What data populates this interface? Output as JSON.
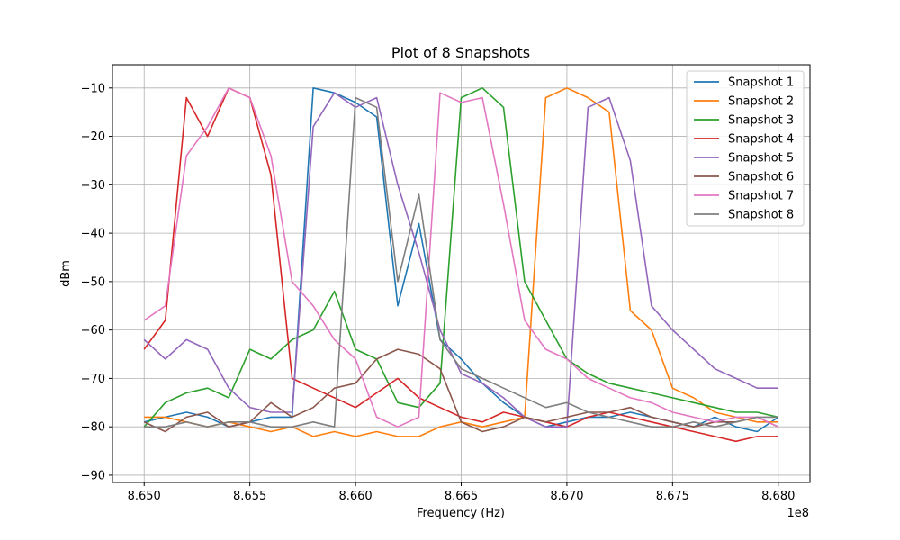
{
  "chart_data": {
    "type": "line",
    "title": "Plot of 8 Snapshots",
    "xlabel": "Frequency (Hz)",
    "ylabel": "dBm",
    "x_offset_label": "1e8",
    "xlim": [
      8.6485,
      8.6815
    ],
    "ylim": [
      -91.5,
      -5.2
    ],
    "x_ticks": [
      8.65,
      8.655,
      8.66,
      8.665,
      8.67,
      8.675,
      8.68
    ],
    "x_tick_labels": [
      "8.650",
      "8.655",
      "8.660",
      "8.665",
      "8.670",
      "8.675",
      "8.680"
    ],
    "y_ticks": [
      -90,
      -80,
      -70,
      -60,
      -50,
      -40,
      -30,
      -20,
      -10
    ],
    "y_tick_labels": [
      "−90",
      "−80",
      "−70",
      "−60",
      "−50",
      "−40",
      "−30",
      "−20",
      "−10"
    ],
    "grid": true,
    "legend_position": "top-right",
    "x": [
      8.65,
      8.651,
      8.652,
      8.653,
      8.654,
      8.655,
      8.656,
      8.657,
      8.658,
      8.659,
      8.66,
      8.661,
      8.662,
      8.663,
      8.664,
      8.665,
      8.666,
      8.667,
      8.668,
      8.669,
      8.67,
      8.671,
      8.672,
      8.673,
      8.674,
      8.675,
      8.676,
      8.677,
      8.678,
      8.679,
      8.68
    ],
    "series": [
      {
        "name": "Snapshot 1",
        "color": "#1f77b4",
        "values": [
          -79,
          -78,
          -77,
          -78,
          -80,
          -79,
          -78,
          -78,
          -10,
          -11,
          -13,
          -16,
          -55,
          -38,
          -62,
          -66,
          -71,
          -75,
          -78,
          -80,
          -79,
          -78,
          -78,
          -77,
          -78,
          -79,
          -80,
          -78,
          -80,
          -81,
          -78
        ]
      },
      {
        "name": "Snapshot 2",
        "color": "#ff7f0e",
        "values": [
          -78,
          -78,
          -79,
          -80,
          -79,
          -80,
          -81,
          -80,
          -82,
          -81,
          -82,
          -81,
          -82,
          -82,
          -80,
          -79,
          -80,
          -79,
          -78,
          -12,
          -10,
          -12,
          -15,
          -56,
          -60,
          -72,
          -74,
          -77,
          -78,
          -79,
          -79
        ]
      },
      {
        "name": "Snapshot 3",
        "color": "#2ca02c",
        "values": [
          -80,
          -75,
          -73,
          -72,
          -74,
          -64,
          -66,
          -62,
          -60,
          -52,
          -64,
          -66,
          -75,
          -76,
          -71,
          -12,
          -10,
          -14,
          -50,
          -58,
          -66,
          -69,
          -71,
          -72,
          -73,
          -74,
          -75,
          -76,
          -77,
          -77,
          -78
        ]
      },
      {
        "name": "Snapshot 4",
        "color": "#d62728",
        "values": [
          -64,
          -58,
          -12,
          -20,
          -10,
          -12,
          -28,
          -70,
          -72,
          -74,
          -76,
          -73,
          -70,
          -74,
          -76,
          -78,
          -79,
          -77,
          -78,
          -79,
          -80,
          -78,
          -77,
          -78,
          -79,
          -80,
          -81,
          -82,
          -83,
          -82,
          -82
        ]
      },
      {
        "name": "Snapshot 5",
        "color": "#9467bd",
        "values": [
          -62,
          -66,
          -62,
          -64,
          -72,
          -76,
          -77,
          -77,
          -18,
          -11,
          -14,
          -12,
          -30,
          -44,
          -60,
          -69,
          -71,
          -74,
          -78,
          -80,
          -80,
          -14,
          -12,
          -25,
          -55,
          -60,
          -64,
          -68,
          -70,
          -72,
          -72
        ]
      },
      {
        "name": "Snapshot 6",
        "color": "#8c564b",
        "values": [
          -79,
          -81,
          -78,
          -77,
          -80,
          -79,
          -75,
          -78,
          -76,
          -72,
          -71,
          -66,
          -64,
          -65,
          -68,
          -79,
          -81,
          -80,
          -78,
          -79,
          -78,
          -77,
          -77,
          -76,
          -78,
          -79,
          -80,
          -79,
          -79,
          -78,
          -80
        ]
      },
      {
        "name": "Snapshot 7",
        "color": "#e377c2",
        "values": [
          -58,
          -55,
          -24,
          -18,
          -10,
          -12,
          -24,
          -50,
          -55,
          -62,
          -66,
          -78,
          -80,
          -78,
          -11,
          -13,
          -12,
          -34,
          -58,
          -64,
          -66,
          -70,
          -72,
          -74,
          -75,
          -77,
          -78,
          -79,
          -78,
          -78,
          -80
        ]
      },
      {
        "name": "Snapshot 8",
        "color": "#7f7f7f",
        "values": [
          -80,
          -80,
          -79,
          -80,
          -79,
          -79,
          -80,
          -80,
          -79,
          -80,
          -12,
          -14,
          -50,
          -32,
          -62,
          -68,
          -70,
          -72,
          -74,
          -76,
          -75,
          -77,
          -78,
          -79,
          -80,
          -80,
          -79,
          -80,
          -79,
          -78,
          -78
        ]
      }
    ]
  }
}
